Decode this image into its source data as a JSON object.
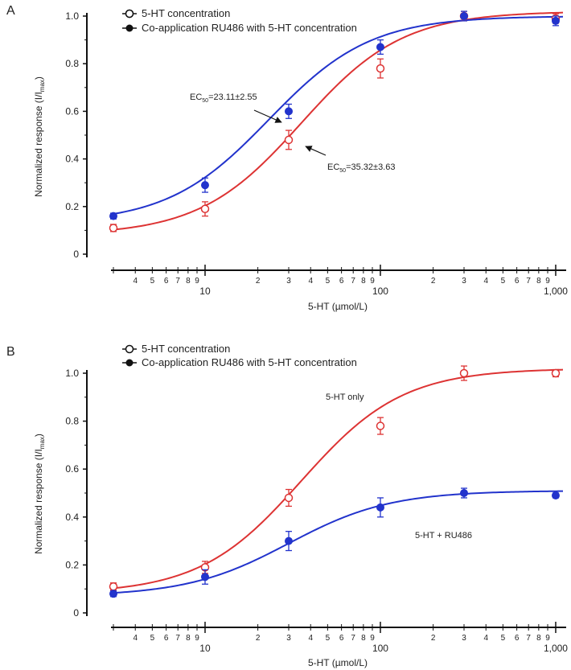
{
  "chart_data": [
    {
      "type": "scatter",
      "panel_label": "A",
      "xlabel": "5-HT (µmol/L)",
      "ylabel_main": "Normalized response (I/I",
      "ylabel_sub": "max",
      "ylabel_close": ")",
      "x_scale": "log",
      "xlim": [
        3,
        1100
      ],
      "ylim": [
        0,
        1.0
      ],
      "y_ticks": [
        "0",
        "0.2",
        "0.4",
        "0.6",
        "0.8",
        "1.0"
      ],
      "x_major_labels": [
        "10",
        "100",
        "1,000"
      ],
      "x_minor_labels": [
        "4",
        "5",
        "6",
        "7",
        "8",
        "9",
        "2",
        "3",
        "4",
        "5",
        "6",
        "7",
        "8",
        "9",
        "2",
        "3",
        "4",
        "5",
        "6",
        "7",
        "8",
        "9"
      ],
      "legend": [
        {
          "label": "5-HT concentration",
          "marker": "open-circle"
        },
        {
          "label": "Co-application RU486 with 5-HT concentration",
          "marker": "filled-circle"
        }
      ],
      "series": [
        {
          "color": "#dd3333",
          "marker": "open-circle",
          "x": [
            3,
            10,
            30,
            100,
            300,
            1000
          ],
          "y": [
            0.11,
            0.19,
            0.48,
            0.78,
            1.0,
            0.99
          ],
          "err": [
            0.015,
            0.03,
            0.04,
            0.04,
            0.02,
            0.02
          ],
          "fit": {
            "bottom": 0.08,
            "top": 1.02,
            "ec50": 35.32,
            "hill": 1.5
          }
        },
        {
          "color": "#2233cc",
          "marker": "filled-circle",
          "x": [
            3,
            10,
            30,
            100,
            300,
            1000
          ],
          "y": [
            0.16,
            0.29,
            0.6,
            0.87,
            1.0,
            0.98
          ],
          "err": [
            0.012,
            0.03,
            0.03,
            0.03,
            0.02,
            0.02
          ],
          "fit": {
            "bottom": 0.13,
            "top": 1.0,
            "ec50": 23.11,
            "hill": 1.5
          }
        }
      ],
      "annotations": [
        {
          "prefix": "EC",
          "sub": "50",
          "value": "=23.11±2.55"
        },
        {
          "prefix": "EC",
          "sub": "50",
          "value": "=35.32±3.63"
        }
      ]
    },
    {
      "type": "scatter",
      "panel_label": "B",
      "xlabel": "5-HT (µmol/L)",
      "ylabel_main": "Normalized response (I/I",
      "ylabel_sub": "max",
      "ylabel_close": ")",
      "x_scale": "log",
      "xlim": [
        3,
        1100
      ],
      "ylim": [
        0,
        1.0
      ],
      "y_ticks": [
        "0",
        "0.2",
        "0.4",
        "0.6",
        "0.8",
        "1.0"
      ],
      "x_major_labels": [
        "10",
        "100",
        "1,000"
      ],
      "x_minor_labels": [
        "4",
        "5",
        "6",
        "7",
        "8",
        "9",
        "2",
        "3",
        "4",
        "5",
        "6",
        "7",
        "8",
        "9",
        "2",
        "3",
        "4",
        "5",
        "6",
        "7",
        "8",
        "9"
      ],
      "legend": [
        {
          "label": "5-HT concentration",
          "marker": "open-circle"
        },
        {
          "label": "Co-application RU486 with 5-HT concentration",
          "marker": "filled-circle"
        }
      ],
      "series": [
        {
          "color": "#dd3333",
          "marker": "open-circle",
          "x": [
            3,
            10,
            30,
            100,
            300,
            1000
          ],
          "y": [
            0.11,
            0.19,
            0.48,
            0.78,
            1.0,
            1.0
          ],
          "err": [
            0.015,
            0.025,
            0.035,
            0.035,
            0.03,
            0.015
          ],
          "fit": {
            "bottom": 0.08,
            "top": 1.02,
            "ec50": 35.32,
            "hill": 1.5
          }
        },
        {
          "color": "#2233cc",
          "marker": "filled-circle",
          "x": [
            3,
            10,
            30,
            100,
            300,
            1000
          ],
          "y": [
            0.08,
            0.15,
            0.3,
            0.44,
            0.5,
            0.49
          ],
          "err": [
            0.012,
            0.03,
            0.04,
            0.04,
            0.02,
            0.01
          ],
          "fit": {
            "bottom": 0.07,
            "top": 0.51,
            "ec50": 30.0,
            "hill": 1.5
          }
        }
      ],
      "annotations": [
        {
          "text": "5-HT only"
        },
        {
          "text": "5-HT + RU486"
        }
      ]
    }
  ]
}
